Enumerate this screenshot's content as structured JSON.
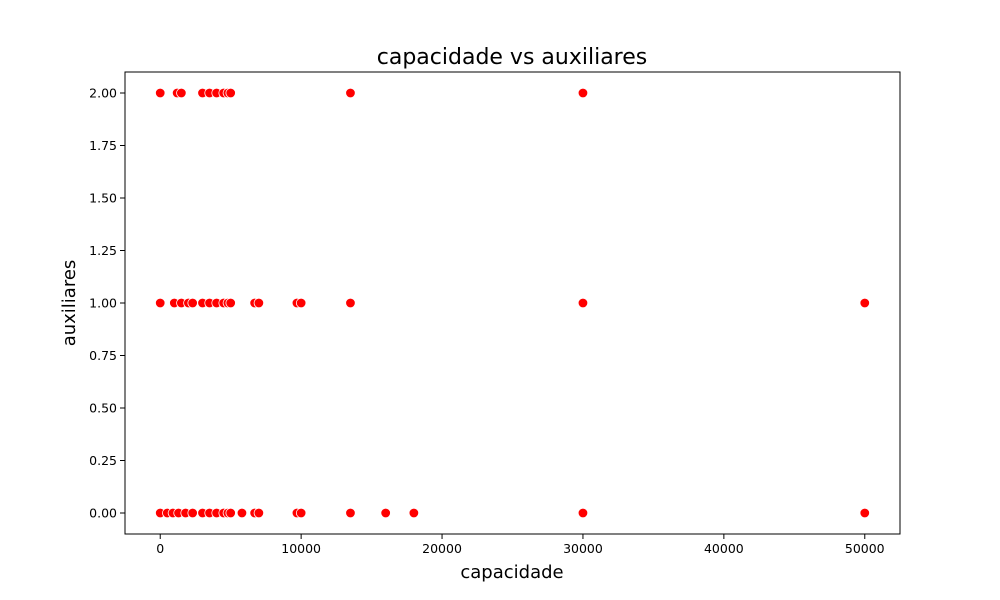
{
  "chart_data": {
    "type": "scatter",
    "title": "capacidade vs auxiliares",
    "xlabel": "capacidade",
    "ylabel": "auxiliares",
    "xlim": [
      -2500,
      52500
    ],
    "ylim": [
      -0.1,
      2.1
    ],
    "xticks": [
      0,
      10000,
      20000,
      30000,
      40000,
      50000
    ],
    "xtick_labels": [
      "0",
      "10000",
      "20000",
      "30000",
      "40000",
      "50000"
    ],
    "yticks": [
      0,
      0.25,
      0.5,
      0.75,
      1.0,
      1.25,
      1.5,
      1.75,
      2.0
    ],
    "ytick_labels": [
      "0.00",
      "0.25",
      "0.50",
      "0.75",
      "1.00",
      "1.25",
      "1.50",
      "1.75",
      "2.00"
    ],
    "grid": false,
    "marker_color": "#ff0000",
    "marker_edge_color": "#ffffff",
    "points": [
      {
        "x": 0,
        "y": 2
      },
      {
        "x": 1200,
        "y": 2
      },
      {
        "x": 1500,
        "y": 2
      },
      {
        "x": 3000,
        "y": 2
      },
      {
        "x": 3500,
        "y": 2
      },
      {
        "x": 4000,
        "y": 2
      },
      {
        "x": 4500,
        "y": 2
      },
      {
        "x": 4800,
        "y": 2
      },
      {
        "x": 5000,
        "y": 2
      },
      {
        "x": 13500,
        "y": 2
      },
      {
        "x": 30000,
        "y": 2
      },
      {
        "x": 0,
        "y": 1
      },
      {
        "x": 1000,
        "y": 1
      },
      {
        "x": 1500,
        "y": 1
      },
      {
        "x": 2000,
        "y": 1
      },
      {
        "x": 2300,
        "y": 1
      },
      {
        "x": 3000,
        "y": 1
      },
      {
        "x": 3500,
        "y": 1
      },
      {
        "x": 4000,
        "y": 1
      },
      {
        "x": 4500,
        "y": 1
      },
      {
        "x": 4800,
        "y": 1
      },
      {
        "x": 5000,
        "y": 1
      },
      {
        "x": 6700,
        "y": 1
      },
      {
        "x": 7000,
        "y": 1
      },
      {
        "x": 9700,
        "y": 1
      },
      {
        "x": 10000,
        "y": 1
      },
      {
        "x": 13500,
        "y": 1
      },
      {
        "x": 30000,
        "y": 1
      },
      {
        "x": 50000,
        "y": 1
      },
      {
        "x": 0,
        "y": 0
      },
      {
        "x": 500,
        "y": 0
      },
      {
        "x": 900,
        "y": 0
      },
      {
        "x": 1300,
        "y": 0
      },
      {
        "x": 1800,
        "y": 0
      },
      {
        "x": 2300,
        "y": 0
      },
      {
        "x": 3000,
        "y": 0
      },
      {
        "x": 3500,
        "y": 0
      },
      {
        "x": 4000,
        "y": 0
      },
      {
        "x": 4500,
        "y": 0
      },
      {
        "x": 4800,
        "y": 0
      },
      {
        "x": 5000,
        "y": 0
      },
      {
        "x": 5800,
        "y": 0
      },
      {
        "x": 6700,
        "y": 0
      },
      {
        "x": 7000,
        "y": 0
      },
      {
        "x": 9700,
        "y": 0
      },
      {
        "x": 10000,
        "y": 0
      },
      {
        "x": 13500,
        "y": 0
      },
      {
        "x": 16000,
        "y": 0
      },
      {
        "x": 18000,
        "y": 0
      },
      {
        "x": 30000,
        "y": 0
      },
      {
        "x": 50000,
        "y": 0
      }
    ]
  }
}
